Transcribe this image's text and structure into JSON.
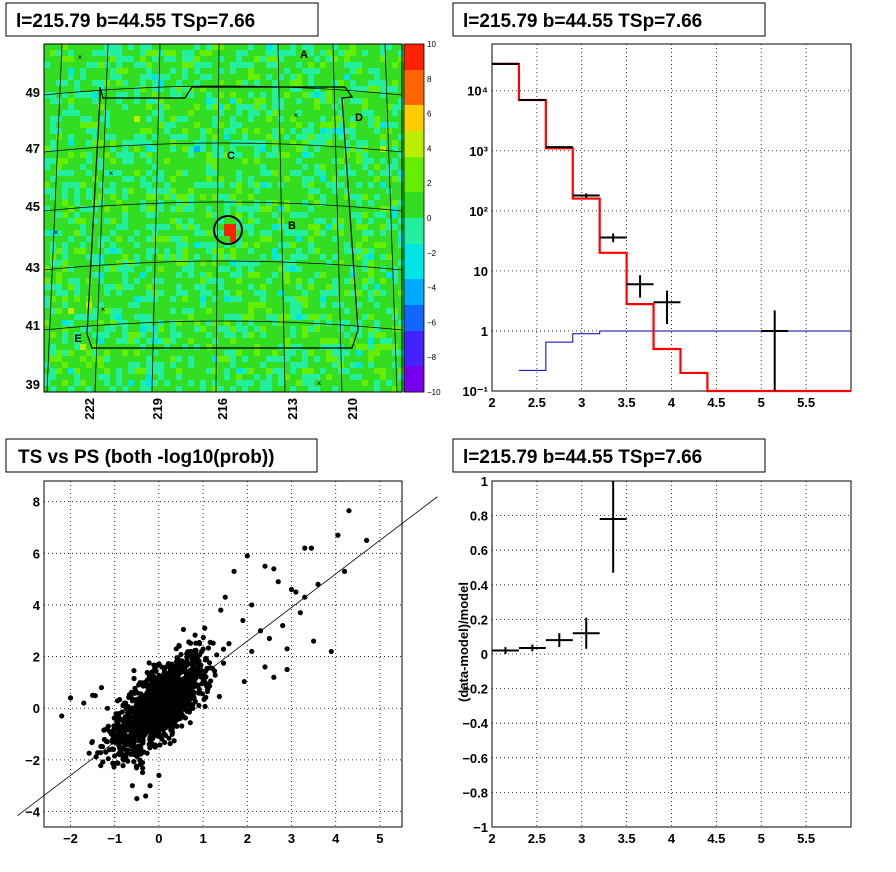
{
  "chart_data": [
    {
      "type": "heatmap",
      "title": "l=215.79 b=44.55 TSp=7.66",
      "x_ticks": [
        "222",
        "219",
        "216",
        "213",
        "210"
      ],
      "y_ticks": [
        "49",
        "47",
        "45",
        "43",
        "41",
        "39"
      ],
      "zlim": [
        -10,
        10
      ],
      "z_ticks": [
        "10",
        "8",
        "6",
        "4",
        "2",
        "0",
        "−2",
        "−4",
        "−6",
        "−8",
        "−10"
      ],
      "labels": [
        "A",
        "B",
        "C",
        "D",
        "E"
      ],
      "colors": {
        "background": "#33dd22",
        "hot": "#ff3300"
      }
    },
    {
      "type": "line",
      "title": "l=215.79 b=44.55 TSp=7.66",
      "xlim": [
        2,
        6
      ],
      "ylog": true,
      "ylim": [
        0.1,
        60000
      ],
      "x_ticks": [
        "2",
        "2.5",
        "3",
        "3.5",
        "4",
        "4.5",
        "5",
        "5.5"
      ],
      "y_ticks": [
        {
          "label": "10⁴",
          "value": 10000
        },
        {
          "label": "10³",
          "value": 1000
        },
        {
          "label": "10²",
          "value": 100
        },
        {
          "label": "10",
          "value": 10
        },
        {
          "label": "1",
          "value": 1
        },
        {
          "label": "10⁻¹",
          "value": 0.1
        }
      ],
      "model_red": {
        "edges": [
          2,
          2.3,
          2.6,
          2.9,
          3.2,
          3.5,
          3.8,
          4.1,
          4.4,
          6
        ],
        "values": [
          28000,
          7000,
          1100,
          160,
          20,
          2.8,
          0.5,
          0.2,
          0.1
        ]
      },
      "model_blue": {
        "edges": [
          2.3,
          2.6,
          2.9,
          3.2,
          6
        ],
        "values": [
          0.22,
          0.65,
          0.9,
          1.0
        ]
      },
      "data_points": [
        {
          "x": 2.15,
          "y": 28000,
          "xerr": 0.15,
          "ylo": 27000,
          "yhi": 29000
        },
        {
          "x": 2.45,
          "y": 7000,
          "xerr": 0.15,
          "ylo": 6800,
          "yhi": 7200
        },
        {
          "x": 2.75,
          "y": 1150,
          "xerr": 0.15,
          "ylo": 1100,
          "yhi": 1200
        },
        {
          "x": 3.05,
          "y": 180,
          "xerr": 0.15,
          "ylo": 165,
          "yhi": 195
        },
        {
          "x": 3.35,
          "y": 36,
          "xerr": 0.15,
          "ylo": 30,
          "yhi": 42
        },
        {
          "x": 3.65,
          "y": 6,
          "xerr": 0.15,
          "ylo": 3.6,
          "yhi": 8.5
        },
        {
          "x": 3.95,
          "y": 3,
          "xerr": 0.15,
          "ylo": 1.3,
          "yhi": 4.7
        },
        {
          "x": 5.15,
          "y": 1,
          "xerr": 0.15,
          "ylo": 0.1,
          "yhi": 2.2
        }
      ],
      "colors": {
        "model": "#ff0000",
        "bkg": "#0000aa",
        "data": "#000000"
      }
    },
    {
      "type": "scatter",
      "title": "TS vs PS (both -log10(prob))",
      "xlim": [
        -2.6,
        5.5
      ],
      "ylim": [
        -4.6,
        8.8
      ],
      "x_ticks": [
        "−2",
        "−1",
        "0",
        "1",
        "2",
        "3",
        "4",
        "5"
      ],
      "y_ticks": [
        "−4",
        "−2",
        "0",
        "2",
        "4",
        "6",
        "8"
      ],
      "line": {
        "slope": 1.3,
        "intercept": 0.0
      },
      "outliers": [
        [
          4.3,
          7.65
        ],
        [
          4.05,
          6.7
        ],
        [
          4.7,
          6.5
        ],
        [
          3.3,
          6.2
        ],
        [
          3.45,
          6.2
        ],
        [
          4.2,
          5.3
        ],
        [
          2.0,
          5.9
        ],
        [
          1.7,
          5.3
        ],
        [
          2.4,
          5.5
        ],
        [
          2.6,
          5.4
        ],
        [
          3.6,
          4.8
        ],
        [
          3.1,
          4.5
        ],
        [
          3.3,
          4.3
        ],
        [
          2.7,
          4.9
        ],
        [
          3.0,
          4.6
        ],
        [
          1.5,
          4.3
        ],
        [
          1.4,
          3.8
        ],
        [
          2.1,
          4.0
        ],
        [
          3.2,
          3.7
        ],
        [
          2.8,
          3.2
        ],
        [
          3.5,
          2.6
        ],
        [
          3.9,
          2.2
        ],
        [
          2.9,
          2.3
        ],
        [
          2.5,
          2.7
        ],
        [
          2.3,
          3.0
        ],
        [
          2.1,
          2.2
        ],
        [
          1.9,
          3.4
        ],
        [
          2.4,
          1.6
        ],
        [
          2.6,
          1.2
        ],
        [
          2.9,
          1.5
        ],
        [
          -2.2,
          -0.3
        ],
        [
          -2.0,
          0.4
        ],
        [
          -1.7,
          0.2
        ],
        [
          -1.5,
          0.5
        ],
        [
          -1.3,
          0.8
        ],
        [
          -1.0,
          -1.3
        ],
        [
          -0.8,
          -2.0
        ],
        [
          -0.5,
          -3.5
        ],
        [
          -0.3,
          -3.4
        ],
        [
          -0.2,
          -3.0
        ],
        [
          -0.6,
          -3.0
        ],
        [
          -1.2,
          -1.7
        ],
        [
          -0.9,
          -1.2
        ],
        [
          0.0,
          -2.6
        ]
      ],
      "colors": {
        "points": "#000000"
      }
    },
    {
      "type": "line",
      "title": "l=215.79 b=44.55 TSp=7.66",
      "ylabel": "(data-model)/model",
      "xlim": [
        2,
        6
      ],
      "ylim": [
        -1,
        1
      ],
      "x_ticks": [
        "2",
        "2.5",
        "3",
        "3.5",
        "4",
        "4.5",
        "5",
        "5.5"
      ],
      "y_ticks": [
        "1",
        "0.8",
        "0.6",
        "0.4",
        "0.2",
        "0",
        "−0.2",
        "−0.4",
        "−0.6",
        "−0.8",
        "−1"
      ],
      "data_points": [
        {
          "x": 2.15,
          "y": 0.02,
          "xerr": 0.15,
          "ylo": 0.0,
          "yhi": 0.04
        },
        {
          "x": 2.45,
          "y": 0.035,
          "xerr": 0.15,
          "ylo": 0.015,
          "yhi": 0.055
        },
        {
          "x": 2.75,
          "y": 0.08,
          "xerr": 0.15,
          "ylo": 0.04,
          "yhi": 0.12
        },
        {
          "x": 3.05,
          "y": 0.12,
          "xerr": 0.15,
          "ylo": 0.03,
          "yhi": 0.21
        },
        {
          "x": 3.35,
          "y": 0.78,
          "xerr": 0.15,
          "ylo": 0.47,
          "yhi": 1.0
        }
      ],
      "colors": {
        "data": "#000000"
      }
    }
  ]
}
